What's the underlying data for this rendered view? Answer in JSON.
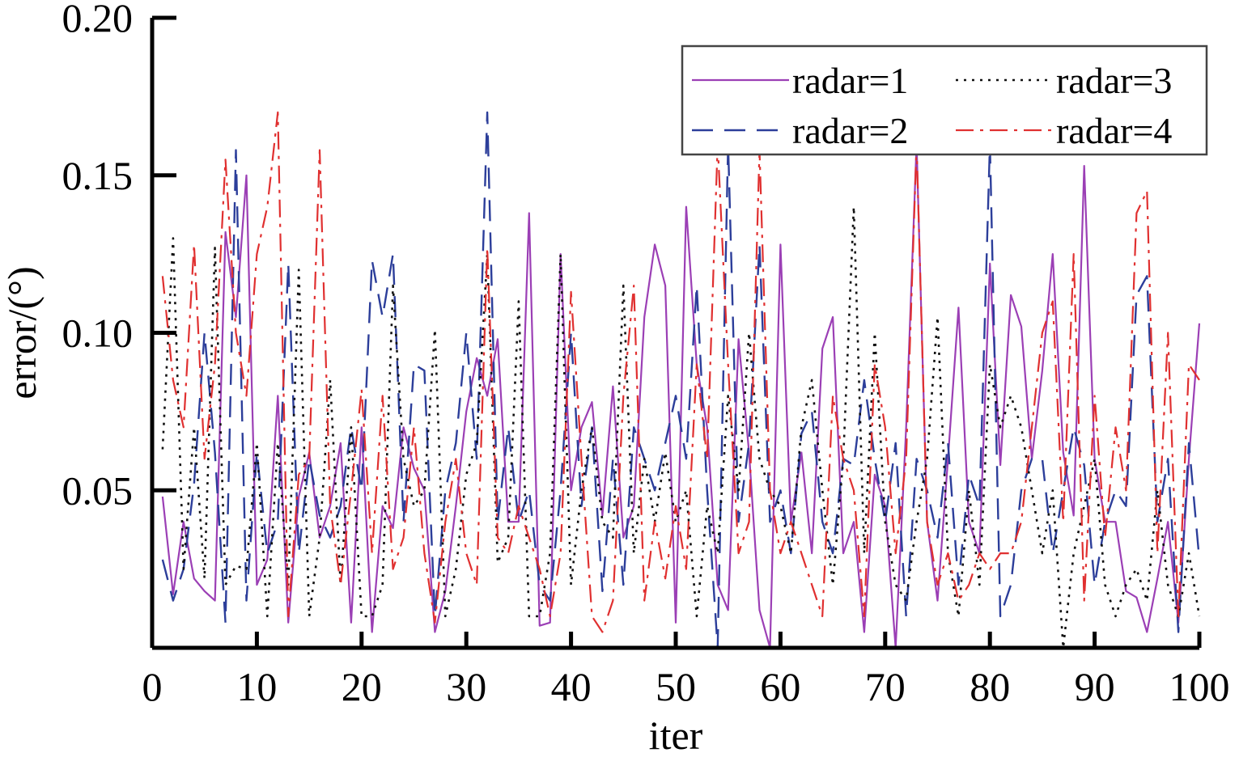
{
  "chart_data": {
    "type": "line",
    "title": "",
    "xlabel": "iter",
    "ylabel": "error/(°)",
    "xlim": [
      0,
      100
    ],
    "ylim": [
      0,
      0.2
    ],
    "xticks": [
      0,
      10,
      20,
      30,
      40,
      50,
      60,
      70,
      80,
      90,
      100
    ],
    "xtick_labels": [
      "0",
      "10",
      "20",
      "30",
      "40",
      "50",
      "60",
      "70",
      "80",
      "90",
      "100"
    ],
    "yticks": [
      0.05,
      0.1,
      0.15,
      0.2
    ],
    "ytick_labels": [
      "0.05",
      "0.10",
      "0.15",
      "0.20"
    ],
    "grid": false,
    "legend_position": "top-right",
    "legend_columns": 2,
    "x": [
      1,
      2,
      3,
      4,
      5,
      6,
      7,
      8,
      9,
      10,
      11,
      12,
      13,
      14,
      15,
      16,
      17,
      18,
      19,
      20,
      21,
      22,
      23,
      24,
      25,
      26,
      27,
      28,
      29,
      30,
      31,
      32,
      33,
      34,
      35,
      36,
      37,
      38,
      39,
      40,
      41,
      42,
      43,
      44,
      45,
      46,
      47,
      48,
      49,
      50,
      51,
      52,
      53,
      54,
      55,
      56,
      57,
      58,
      59,
      60,
      61,
      62,
      63,
      64,
      65,
      66,
      67,
      68,
      69,
      70,
      71,
      72,
      73,
      74,
      75,
      76,
      77,
      78,
      79,
      80,
      81,
      82,
      83,
      84,
      85,
      86,
      87,
      88,
      89,
      90,
      91,
      92,
      93,
      94,
      95,
      96,
      97,
      98,
      99,
      100
    ],
    "series": [
      {
        "name": "radar=1",
        "color": "#9b3fb5",
        "dash": "solid",
        "values": [
          0.048,
          0.017,
          0.04,
          0.022,
          0.018,
          0.015,
          0.132,
          0.105,
          0.15,
          0.02,
          0.028,
          0.08,
          0.008,
          0.048,
          0.062,
          0.035,
          0.045,
          0.065,
          0.008,
          0.07,
          0.005,
          0.045,
          0.038,
          0.07,
          0.057,
          0.05,
          0.005,
          0.018,
          0.045,
          0.075,
          0.092,
          0.08,
          0.098,
          0.04,
          0.04,
          0.138,
          0.007,
          0.008,
          0.125,
          0.05,
          0.07,
          0.078,
          0.042,
          0.083,
          0.035,
          0.045,
          0.105,
          0.128,
          0.115,
          0.008,
          0.14,
          0.09,
          0.07,
          0.02,
          0.012,
          0.098,
          0.062,
          0.012,
          0.0,
          0.128,
          0.04,
          0.062,
          0.03,
          0.095,
          0.105,
          0.03,
          0.04,
          0.005,
          0.055,
          0.045,
          0.0,
          0.07,
          0.16,
          0.04,
          0.015,
          0.06,
          0.108,
          0.04,
          0.03,
          0.122,
          0.058,
          0.112,
          0.102,
          0.06,
          0.088,
          0.125,
          0.062,
          0.042,
          0.153,
          0.06,
          0.04,
          0.04,
          0.018,
          0.016,
          0.005,
          0.022,
          0.04,
          0.008,
          0.06,
          0.103
        ]
      },
      {
        "name": "radar=2",
        "color": "#2c3e9a",
        "dash": "26 14",
        "values": [
          0.028,
          0.015,
          0.025,
          0.052,
          0.1,
          0.062,
          0.008,
          0.158,
          0.015,
          0.062,
          0.03,
          0.04,
          0.122,
          0.03,
          0.06,
          0.042,
          0.035,
          0.045,
          0.07,
          0.05,
          0.123,
          0.105,
          0.125,
          0.04,
          0.09,
          0.088,
          0.01,
          0.05,
          0.065,
          0.1,
          0.06,
          0.17,
          0.04,
          0.07,
          0.04,
          0.05,
          0.02,
          0.015,
          0.05,
          0.1,
          0.045,
          0.07,
          0.018,
          0.06,
          0.02,
          0.07,
          0.06,
          0.05,
          0.065,
          0.08,
          0.06,
          0.115,
          0.05,
          0.0,
          0.16,
          0.04,
          0.065,
          0.128,
          0.04,
          0.05,
          0.03,
          0.068,
          0.075,
          0.04,
          0.03,
          0.06,
          0.058,
          0.085,
          0.06,
          0.04,
          0.065,
          0.01,
          0.06,
          0.05,
          0.035,
          0.065,
          0.02,
          0.055,
          0.045,
          0.16,
          0.01,
          0.02,
          0.05,
          0.06,
          0.06,
          0.03,
          0.05,
          0.07,
          0.058,
          0.02,
          0.04,
          0.05,
          0.045,
          0.112,
          0.118,
          0.04,
          0.06,
          0.005,
          0.065,
          0.028
        ]
      },
      {
        "name": "radar=3",
        "color": "#111111",
        "dash": "3 7",
        "values": [
          0.063,
          0.13,
          0.025,
          0.07,
          0.022,
          0.127,
          0.02,
          0.026,
          0.025,
          0.065,
          0.01,
          0.065,
          0.02,
          0.12,
          0.01,
          0.035,
          0.085,
          0.02,
          0.07,
          0.01,
          0.01,
          0.02,
          0.115,
          0.06,
          0.045,
          0.05,
          0.101,
          0.01,
          0.025,
          0.055,
          0.065,
          0.125,
          0.027,
          0.035,
          0.11,
          0.01,
          0.01,
          0.03,
          0.125,
          0.02,
          0.05,
          0.07,
          0.04,
          0.035,
          0.115,
          0.03,
          0.06,
          0.04,
          0.062,
          0.04,
          0.05,
          0.01,
          0.045,
          0.03,
          0.08,
          0.05,
          0.1,
          0.06,
          0.05,
          0.045,
          0.03,
          0.07,
          0.085,
          0.05,
          0.02,
          0.06,
          0.14,
          0.03,
          0.1,
          0.04,
          0.02,
          0.015,
          0.04,
          0.06,
          0.105,
          0.03,
          0.01,
          0.05,
          0.02,
          0.09,
          0.07,
          0.08,
          0.07,
          0.05,
          0.03,
          0.05,
          0.0,
          0.03,
          0.045,
          0.06,
          0.02,
          0.01,
          0.02,
          0.025,
          0.015,
          0.05,
          0.02,
          0.01,
          0.03,
          0.01
        ]
      },
      {
        "name": "radar=4",
        "color": "#e03030",
        "dash": "22 8 4 8",
        "values": [
          0.118,
          0.085,
          0.07,
          0.128,
          0.06,
          0.09,
          0.155,
          0.1,
          0.08,
          0.125,
          0.14,
          0.17,
          0.01,
          0.055,
          0.06,
          0.158,
          0.045,
          0.02,
          0.05,
          0.082,
          0.03,
          0.08,
          0.025,
          0.035,
          0.07,
          0.03,
          0.008,
          0.04,
          0.06,
          0.03,
          0.02,
          0.127,
          0.035,
          0.03,
          0.045,
          0.035,
          0.025,
          0.01,
          0.03,
          0.113,
          0.06,
          0.01,
          0.005,
          0.015,
          0.08,
          0.115,
          0.015,
          0.04,
          0.022,
          0.045,
          0.025,
          0.09,
          0.06,
          0.16,
          0.09,
          0.03,
          0.04,
          0.158,
          0.05,
          0.03,
          0.04,
          0.03,
          0.02,
          0.01,
          0.08,
          0.06,
          0.05,
          0.01,
          0.09,
          0.07,
          0.03,
          0.06,
          0.16,
          0.04,
          0.02,
          0.03,
          0.015,
          0.02,
          0.03,
          0.025,
          0.03,
          0.03,
          0.04,
          0.07,
          0.1,
          0.11,
          0.04,
          0.125,
          0.015,
          0.08,
          0.035,
          0.07,
          0.05,
          0.138,
          0.145,
          0.03,
          0.1,
          0.01,
          0.09,
          0.085
        ]
      }
    ]
  }
}
